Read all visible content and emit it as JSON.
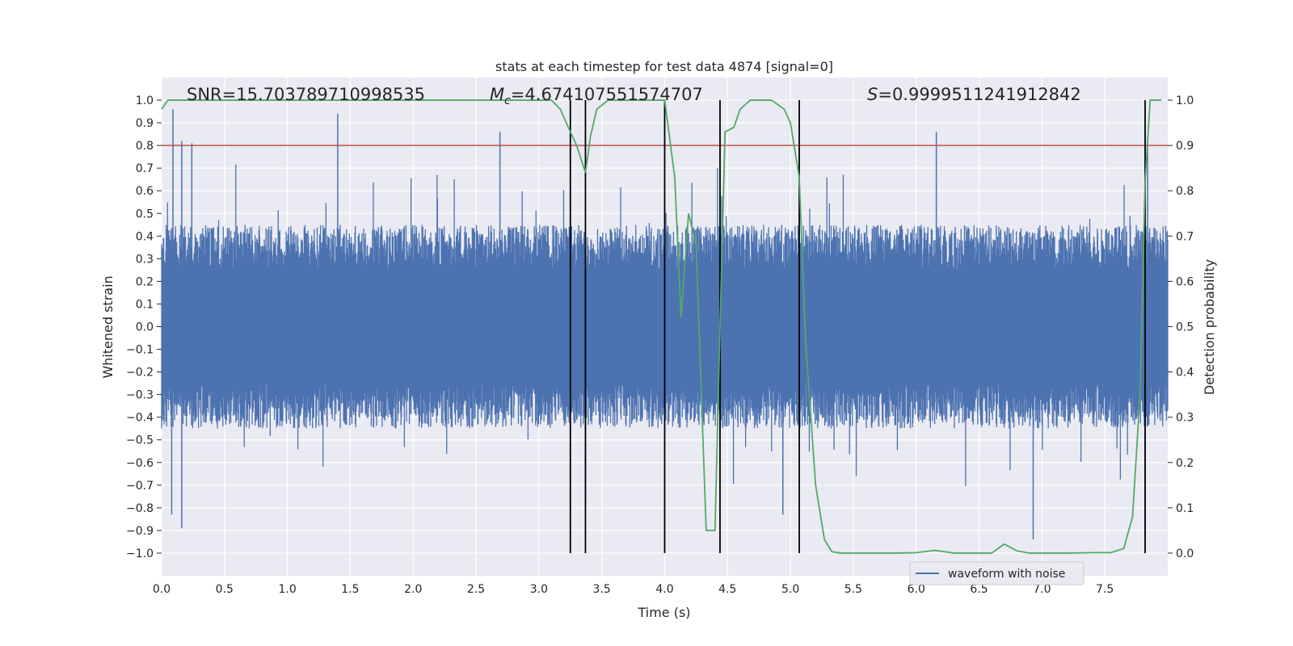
{
  "chart_data": {
    "type": "line",
    "title": "stats at each timestep for test data 4874 [signal=0]",
    "xlabel": "Time (s)",
    "ylabel": "Whitened strain",
    "y2label": "Detection probability",
    "xlim": [
      0.0,
      8.0
    ],
    "ylim": [
      -1.1,
      1.1
    ],
    "y2lim": [
      -0.05,
      1.05
    ],
    "xticks": [
      "0.0",
      "0.5",
      "1.0",
      "1.5",
      "2.0",
      "2.5",
      "3.0",
      "3.5",
      "4.0",
      "4.5",
      "5.0",
      "5.5",
      "6.0",
      "6.5",
      "7.0",
      "7.5"
    ],
    "yticks": [
      "1.0",
      "0.9",
      "0.8",
      "0.7",
      "0.6",
      "0.5",
      "0.4",
      "0.3",
      "0.2",
      "0.1",
      "0.0",
      "−0.1",
      "−0.2",
      "−0.3",
      "−0.4",
      "−0.5",
      "−0.6",
      "−0.7",
      "−0.8",
      "−0.9",
      "−1.0"
    ],
    "y2ticks": [
      "1.0",
      "0.9",
      "0.8",
      "0.7",
      "0.6",
      "0.5",
      "0.4",
      "0.3",
      "0.2",
      "0.1",
      "0.0"
    ],
    "grid": true,
    "legend_position": "lower-center",
    "annotations": {
      "snr": "SNR=15.703789710998535",
      "mc": "=4.674107551574707",
      "mc_symbol": "M",
      "mc_sub": "c",
      "s": "=0.9999511241912842",
      "s_symbol": "S"
    },
    "threshold": {
      "value": 0.8,
      "color": "#c44e52"
    },
    "vertical_lines": [
      3.25,
      3.37,
      4.0,
      4.44,
      5.07,
      7.82
    ],
    "series": [
      {
        "name": "waveform with noise",
        "color": "#4c72b0",
        "axis": "left",
        "kind": "noise",
        "envelope_typical": 0.45,
        "peaks": [
          {
            "x": 0.09,
            "y": 0.96
          },
          {
            "x": 0.16,
            "y": 0.82
          },
          {
            "x": 0.24,
            "y": 0.81
          },
          {
            "x": 1.4,
            "y": 0.94
          },
          {
            "x": 2.69,
            "y": 0.86
          },
          {
            "x": 6.16,
            "y": 0.86
          },
          {
            "x": 7.84,
            "y": 0.84
          },
          {
            "x": 0.16,
            "y": -0.89
          },
          {
            "x": 0.08,
            "y": -0.83
          },
          {
            "x": 3.37,
            "y": -0.78
          },
          {
            "x": 6.93,
            "y": -0.94
          },
          {
            "x": 7.82,
            "y": -0.94
          },
          {
            "x": 4.94,
            "y": -0.83
          }
        ]
      },
      {
        "name": "",
        "color": "#55a868",
        "axis": "right",
        "kind": "line",
        "x": [
          0.0,
          0.05,
          0.1,
          3.0,
          3.1,
          3.17,
          3.25,
          3.3,
          3.37,
          3.41,
          3.46,
          3.55,
          3.7,
          3.85,
          3.95,
          4.0,
          4.08,
          4.13,
          4.19,
          4.25,
          4.33,
          4.4,
          4.44,
          4.48,
          4.55,
          4.6,
          4.68,
          4.75,
          4.85,
          4.95,
          5.0,
          5.07,
          5.12,
          5.2,
          5.27,
          5.33,
          5.4,
          5.55,
          5.7,
          5.85,
          6.0,
          6.15,
          6.3,
          6.45,
          6.6,
          6.7,
          6.8,
          6.9,
          7.0,
          7.2,
          7.4,
          7.55,
          7.65,
          7.72,
          7.78,
          7.82,
          7.86,
          7.9,
          7.95
        ],
        "y": [
          0.98,
          1.0,
          1.0,
          1.0,
          1.0,
          0.98,
          0.93,
          0.9,
          0.84,
          0.92,
          0.98,
          1.0,
          1.0,
          1.0,
          1.0,
          1.0,
          0.83,
          0.52,
          0.75,
          0.68,
          0.05,
          0.05,
          0.5,
          0.93,
          0.94,
          0.98,
          1.0,
          1.0,
          1.0,
          0.98,
          0.95,
          0.83,
          0.47,
          0.15,
          0.03,
          0.003,
          0.0,
          0.0,
          0.0,
          0.0,
          0.001,
          0.006,
          0.0,
          0.0,
          0.0,
          0.02,
          0.005,
          0.0,
          0.0,
          0.0,
          0.001,
          0.001,
          0.01,
          0.08,
          0.35,
          0.82,
          1.0,
          1.0,
          1.0
        ]
      }
    ]
  }
}
